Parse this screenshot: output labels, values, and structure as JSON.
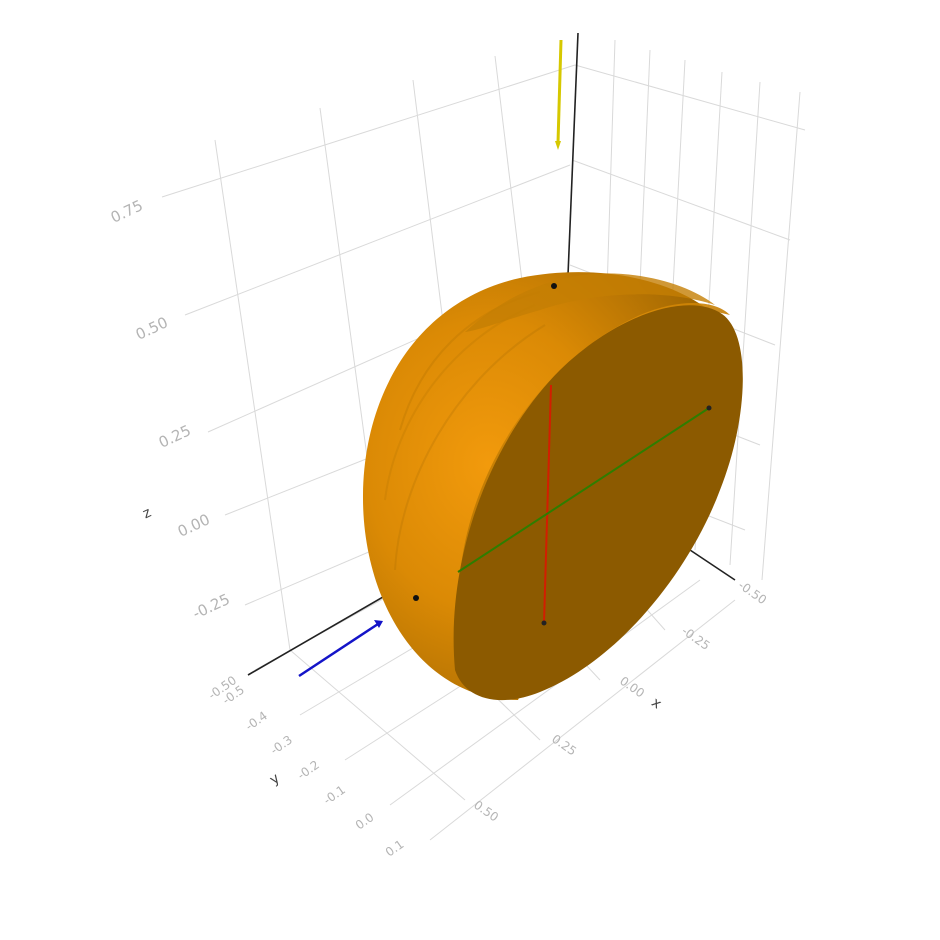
{
  "axes": {
    "x": {
      "title": "x",
      "ticks": [
        "-0.50",
        "-0.25",
        "0.00",
        "0.25",
        "0.50"
      ]
    },
    "y": {
      "title": "y",
      "ticks": [
        "-0.50",
        "-0.5",
        "-0.4",
        "-0.3",
        "-0.2",
        "-0.1",
        "0.0",
        "0.1"
      ]
    },
    "z": {
      "title": "z",
      "ticks": [
        "-0.25",
        "0.00",
        "0.25",
        "0.50",
        "0.75"
      ]
    }
  },
  "colors": {
    "body_light": "#e8950a",
    "body_mid": "#c17a03",
    "body_dark": "#8c5a02",
    "cut_face": "#8c5a00",
    "arrow_x": "#1414c8",
    "arrow_z": "#d6c800",
    "line_red": "#d21e00",
    "line_green": "#2e7d00"
  },
  "shape": "half-ellipsoid (cut face visible)",
  "grid": true
}
